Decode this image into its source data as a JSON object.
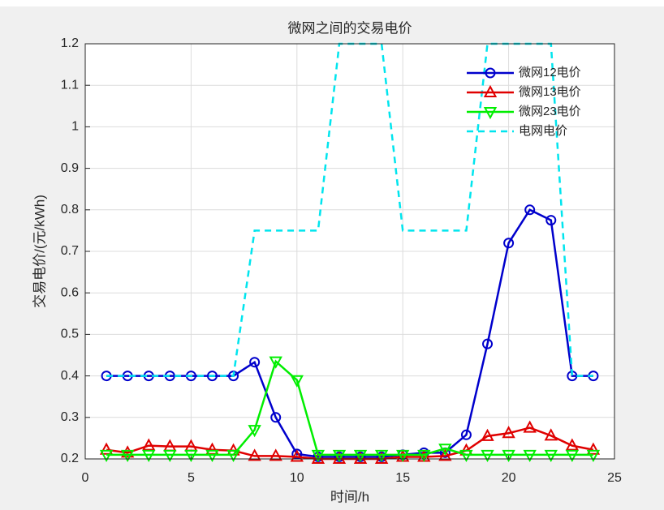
{
  "chart_data": {
    "type": "line",
    "title": "微网之间的交易电价",
    "xlabel": "时间/h",
    "ylabel": "交易电价/(元/kWh)",
    "x": [
      1,
      2,
      3,
      4,
      5,
      6,
      7,
      8,
      9,
      10,
      11,
      12,
      13,
      14,
      15,
      16,
      17,
      18,
      19,
      20,
      21,
      22,
      23,
      24
    ],
    "series": [
      {
        "name": "微网12电价",
        "color": "#0000cc",
        "marker": "o",
        "linestyle": "-",
        "values": [
          0.4,
          0.4,
          0.4,
          0.4,
          0.4,
          0.4,
          0.4,
          0.433,
          0.3,
          0.212,
          0.205,
          0.205,
          0.205,
          0.205,
          0.21,
          0.215,
          0.215,
          0.258,
          0.477,
          0.72,
          0.8,
          0.775,
          0.4,
          0.4
        ]
      },
      {
        "name": "微网13电价",
        "color": "#e00000",
        "marker": "^",
        "linestyle": "-",
        "values": [
          0.222,
          0.215,
          0.232,
          0.23,
          0.23,
          0.222,
          0.22,
          0.207,
          0.207,
          0.205,
          0.2,
          0.2,
          0.2,
          0.2,
          0.205,
          0.205,
          0.207,
          0.22,
          0.255,
          0.262,
          0.275,
          0.256,
          0.232,
          0.222
        ]
      },
      {
        "name": "微网23电价",
        "color": "#00ee00",
        "marker": "v",
        "linestyle": "-",
        "values": [
          0.21,
          0.21,
          0.21,
          0.21,
          0.21,
          0.21,
          0.21,
          0.27,
          0.435,
          0.39,
          0.21,
          0.21,
          0.21,
          0.21,
          0.21,
          0.21,
          0.225,
          0.21,
          0.21,
          0.21,
          0.21,
          0.21,
          0.21,
          0.21
        ]
      },
      {
        "name": "电网电价",
        "color": "#00e5ee",
        "marker": "none",
        "linestyle": "--",
        "values": [
          0.4,
          0.4,
          0.4,
          0.4,
          0.4,
          0.4,
          0.4,
          0.75,
          0.75,
          0.75,
          0.75,
          1.2,
          1.2,
          1.2,
          0.75,
          0.75,
          0.75,
          0.75,
          1.2,
          1.2,
          1.2,
          1.2,
          0.4,
          0.4
        ]
      }
    ],
    "xlim": [
      0,
      25
    ],
    "xticks": [
      0,
      5,
      10,
      15,
      20,
      25
    ],
    "ylim": [
      0.2,
      1.2
    ],
    "yticks": [
      0.2,
      0.3,
      0.4,
      0.5,
      0.6,
      0.7,
      0.8,
      0.9,
      1,
      1.1,
      1.2
    ],
    "grid": true,
    "legend": "northeast"
  }
}
